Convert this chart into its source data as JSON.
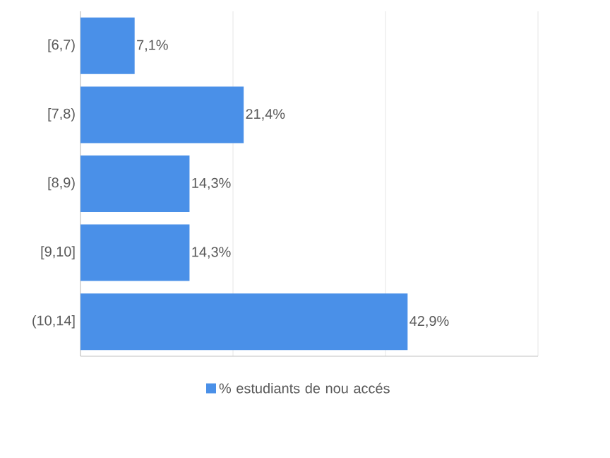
{
  "chart_data": {
    "type": "bar",
    "orientation": "horizontal",
    "categories": [
      "[6,7)",
      "[7,8)",
      "[8,9)",
      "[9,10]",
      "(10,14]"
    ],
    "series": [
      {
        "name": "% estudiants de nou accés",
        "color": "#4a90e8",
        "values": [
          7.1,
          21.4,
          14.3,
          14.3,
          42.9
        ],
        "value_labels": [
          "7,1%",
          "21,4%",
          "14,3%",
          "14,3%",
          "42,9%"
        ]
      }
    ],
    "xlim": [
      0,
      60
    ],
    "xticks": [
      {
        "value": 0,
        "label": null
      },
      {
        "value": 20,
        "label": null
      },
      {
        "value": 40,
        "label": null
      },
      {
        "value": 60,
        "label": null
      }
    ],
    "tick_labels": "y",
    "grid": "x",
    "legend": "bottom"
  }
}
